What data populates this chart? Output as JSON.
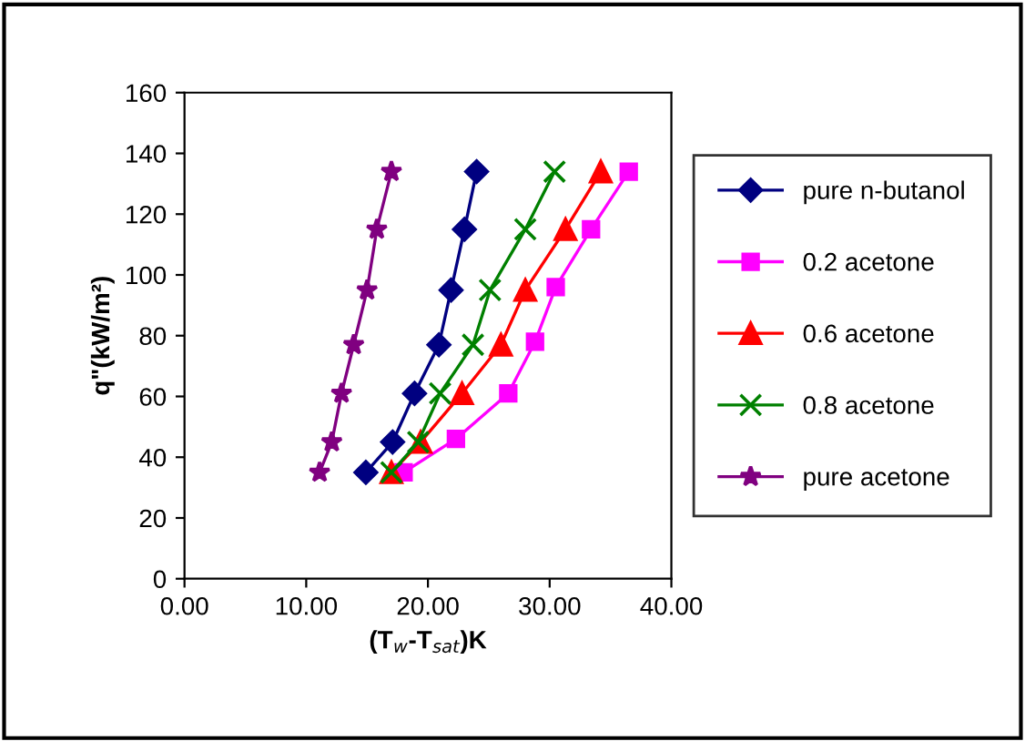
{
  "chart_data": {
    "type": "line",
    "xlabel": "(T$_{w}$-T$_{sat}$)K",
    "ylabel": "q\"(kW/m²)",
    "xlim": [
      0,
      40
    ],
    "xticks": [
      {
        "value": 0,
        "label": "0.00"
      },
      {
        "value": 10,
        "label": "10.00"
      },
      {
        "value": 20,
        "label": "20.00"
      },
      {
        "value": 30,
        "label": "30.00"
      },
      {
        "value": 40,
        "label": "40.00"
      }
    ],
    "ylim": [
      0,
      160
    ],
    "yticks": [
      0,
      20,
      40,
      60,
      80,
      100,
      120,
      140,
      160
    ],
    "grid": false,
    "legend": "right",
    "series": [
      {
        "name": "pure n-butanol",
        "color": "#000080",
        "marker": "diamond",
        "x": [
          14.9,
          17.1,
          18.9,
          20.9,
          21.9,
          23.0,
          24.0
        ],
        "values": [
          35,
          45,
          61,
          77,
          95,
          115,
          134
        ]
      },
      {
        "name": "0.2 acetone",
        "color": "#ff00ff",
        "marker": "square",
        "x": [
          18.0,
          22.3,
          26.6,
          28.8,
          30.5,
          33.4,
          36.5
        ],
        "values": [
          35,
          46,
          61,
          78,
          96,
          115,
          134
        ]
      },
      {
        "name": "0.6 acetone",
        "color": "#ff0000",
        "marker": "triangle",
        "x": [
          17.0,
          19.4,
          22.8,
          26.0,
          28.0,
          31.3,
          34.2
        ],
        "values": [
          35,
          45,
          61,
          77,
          95,
          115,
          134
        ]
      },
      {
        "name": "0.8 acetone",
        "color": "#008000",
        "marker": "cross",
        "x": [
          17.0,
          19.2,
          21.0,
          23.7,
          25.1,
          28.0,
          30.4
        ],
        "values": [
          35,
          45,
          61,
          77,
          95,
          115,
          134
        ]
      },
      {
        "name": "pure acetone",
        "color": "#800080",
        "marker": "star",
        "x": [
          11.1,
          12.1,
          12.9,
          13.9,
          15.0,
          15.8,
          17.0
        ],
        "values": [
          35,
          45,
          61,
          77,
          95,
          115,
          134
        ]
      }
    ]
  }
}
